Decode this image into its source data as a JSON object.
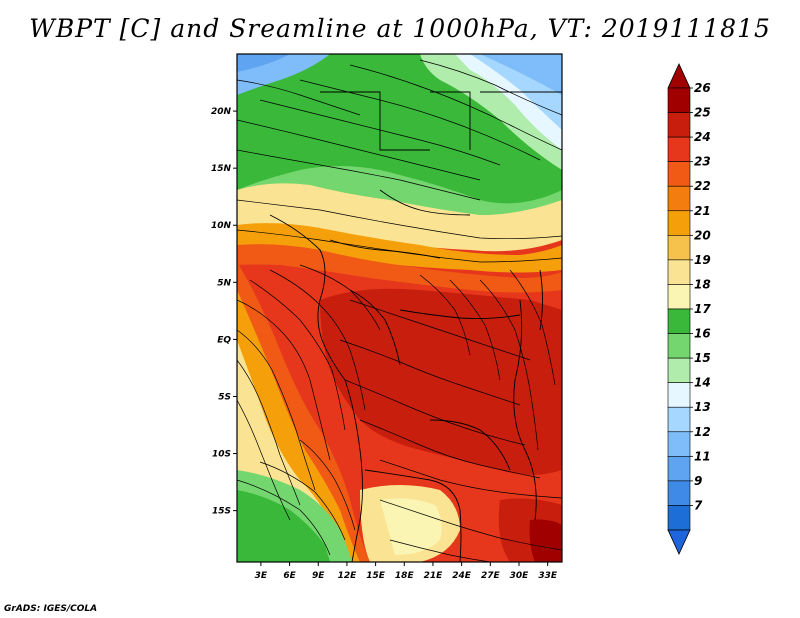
{
  "title": "WBPT [C] and Sreamline at 1000hPa, VT: 2019111815",
  "credit": "GrADS: IGES/COLA",
  "map": {
    "lat_labels": [
      "20N",
      "15N",
      "10N",
      "5N",
      "EQ",
      "5S",
      "10S",
      "15S"
    ],
    "lat_values": [
      20,
      15,
      10,
      5,
      0,
      -5,
      -10,
      -15
    ],
    "lon_labels": [
      "3E",
      "6E",
      "9E",
      "12E",
      "15E",
      "18E",
      "21E",
      "24E",
      "27E",
      "30E",
      "33E"
    ],
    "lon_values": [
      3,
      6,
      9,
      12,
      15,
      18,
      21,
      24,
      27,
      30,
      33
    ],
    "lat_range": [
      -19.5,
      25
    ],
    "lon_range": [
      0.5,
      34.5
    ]
  },
  "colorbar": {
    "labels": [
      "26",
      "25",
      "24",
      "23",
      "22",
      "21",
      "20",
      "19",
      "18",
      "17",
      "16",
      "15",
      "14",
      "13",
      "12",
      "11",
      "9",
      "7"
    ],
    "colors": [
      "#a00000",
      "#c81e0e",
      "#e6371c",
      "#f05a14",
      "#f37d0f",
      "#f5a00a",
      "#f7c24b",
      "#fae392",
      "#fbf5b4",
      "#39b839",
      "#74d66e",
      "#b0ecab",
      "#e6f7ff",
      "#a6d8ff",
      "#7fbcfa",
      "#5fa4f0",
      "#3f8ae6",
      "#1e6ed8"
    ],
    "max_color": "#a00000",
    "min_color": "#1e64dc"
  }
}
